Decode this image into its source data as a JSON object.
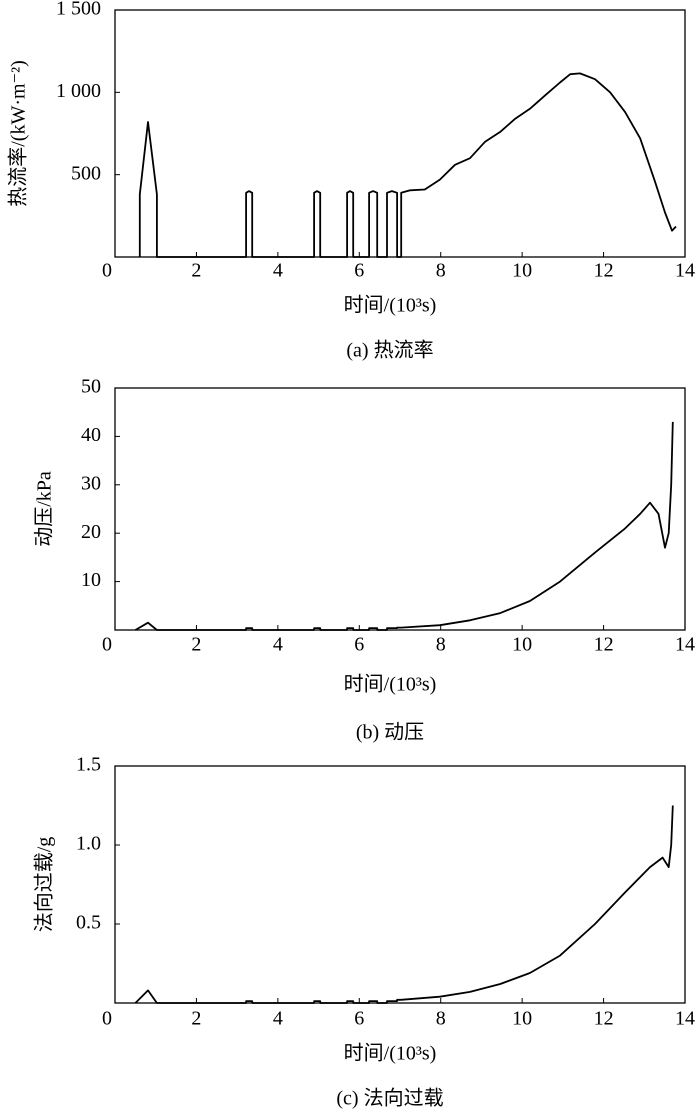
{
  "chart_data": [
    {
      "type": "line",
      "caption": "(a) 热流率",
      "x_label": "时间/(10³s)",
      "y_label": "热流率/(kW·m⁻²)",
      "color": "#000000",
      "xlim": [
        0,
        14
      ],
      "xticks": [
        0,
        2,
        4,
        6,
        8,
        10,
        12,
        14
      ],
      "ylim": [
        0,
        1500
      ],
      "yticks": [
        500,
        {
          "value": 1000,
          "label": "1 000"
        },
        {
          "value": 1500,
          "label": "1 500"
        }
      ],
      "x": [
        0.61,
        0.61,
        0.81,
        1.03,
        1.03,
        3.22,
        3.22,
        3.29,
        3.37,
        3.37,
        4.89,
        4.89,
        4.96,
        5.04,
        5.04,
        5.7,
        5.7,
        5.77,
        5.85,
        5.85,
        6.24,
        6.24,
        6.34,
        6.44,
        6.44,
        6.68,
        6.68,
        6.8,
        6.93,
        6.93,
        7.03,
        7.03,
        7.25,
        7.61,
        7.98,
        8.35,
        8.72,
        9.09,
        9.46,
        9.83,
        10.19,
        10.56,
        10.93,
        11.18,
        11.42,
        11.79,
        12.16,
        12.53,
        12.9,
        13.26,
        13.51,
        13.68,
        13.78
      ],
      "values": [
        0,
        380,
        820,
        380,
        0,
        0,
        390,
        400,
        390,
        0,
        0,
        390,
        400,
        390,
        0,
        0,
        390,
        400,
        390,
        0,
        0,
        390,
        400,
        390,
        0,
        0,
        390,
        400,
        390,
        0,
        0,
        390,
        405,
        410,
        470,
        560,
        600,
        700,
        760,
        840,
        900,
        980,
        1060,
        1110,
        1115,
        1080,
        1000,
        880,
        720,
        460,
        270,
        160,
        185
      ]
    },
    {
      "type": "line",
      "caption": "(b) 动压",
      "x_label": "时间/(10³s)",
      "y_label": "动压/kPa",
      "color": "#000000",
      "xlim": [
        0,
        14
      ],
      "xticks": [
        0,
        2,
        4,
        6,
        8,
        10,
        12,
        14
      ],
      "ylim": [
        0,
        50
      ],
      "yticks": [
        10,
        20,
        30,
        40,
        50
      ],
      "x": [
        0.5,
        0.81,
        1.03,
        3.22,
        3.22,
        3.37,
        3.37,
        4.89,
        4.89,
        5.04,
        5.04,
        5.7,
        5.7,
        5.85,
        5.85,
        6.24,
        6.24,
        6.44,
        6.44,
        6.68,
        6.68,
        6.93,
        6.93,
        7.03,
        7.98,
        8.72,
        9.46,
        10.19,
        10.93,
        11.79,
        12.53,
        12.9,
        13.14,
        13.35,
        13.51,
        13.6,
        13.66,
        13.7
      ],
      "values": [
        0,
        1.5,
        0,
        0,
        0.4,
        0.4,
        0,
        0,
        0.4,
        0.4,
        0,
        0,
        0.4,
        0.4,
        0,
        0,
        0.4,
        0.4,
        0,
        0,
        0.4,
        0.4,
        0.5,
        0.5,
        1,
        2,
        3.5,
        6,
        10,
        16,
        21,
        24,
        26.3,
        24,
        17,
        20,
        30,
        43
      ]
    },
    {
      "type": "line",
      "caption": "(c) 法向过载",
      "x_label": "时间/(10³s)",
      "y_label": "法向过载/g",
      "color": "#000000",
      "xlim": [
        0,
        14
      ],
      "xticks": [
        0,
        2,
        4,
        6,
        8,
        10,
        12,
        14
      ],
      "ylim": [
        0,
        1.5
      ],
      "yticks": [
        0.5,
        {
          "value": 1,
          "label": "1.0"
        },
        1.5
      ],
      "x": [
        0.5,
        0.81,
        1.03,
        3.22,
        3.22,
        3.37,
        3.37,
        4.89,
        4.89,
        5.04,
        5.04,
        5.7,
        5.7,
        5.85,
        5.85,
        6.24,
        6.24,
        6.44,
        6.44,
        6.68,
        6.68,
        6.93,
        6.93,
        7.03,
        7.98,
        8.72,
        9.46,
        10.19,
        10.93,
        11.79,
        12.53,
        13.14,
        13.45,
        13.6,
        13.66,
        13.7
      ],
      "values": [
        0,
        0.08,
        0,
        0,
        0.012,
        0.012,
        0,
        0,
        0.012,
        0.012,
        0,
        0,
        0.012,
        0.012,
        0,
        0,
        0.012,
        0.012,
        0,
        0,
        0.012,
        0.012,
        0.02,
        0.02,
        0.04,
        0.07,
        0.12,
        0.19,
        0.3,
        0.5,
        0.7,
        0.86,
        0.92,
        0.86,
        1.0,
        1.25
      ]
    }
  ]
}
